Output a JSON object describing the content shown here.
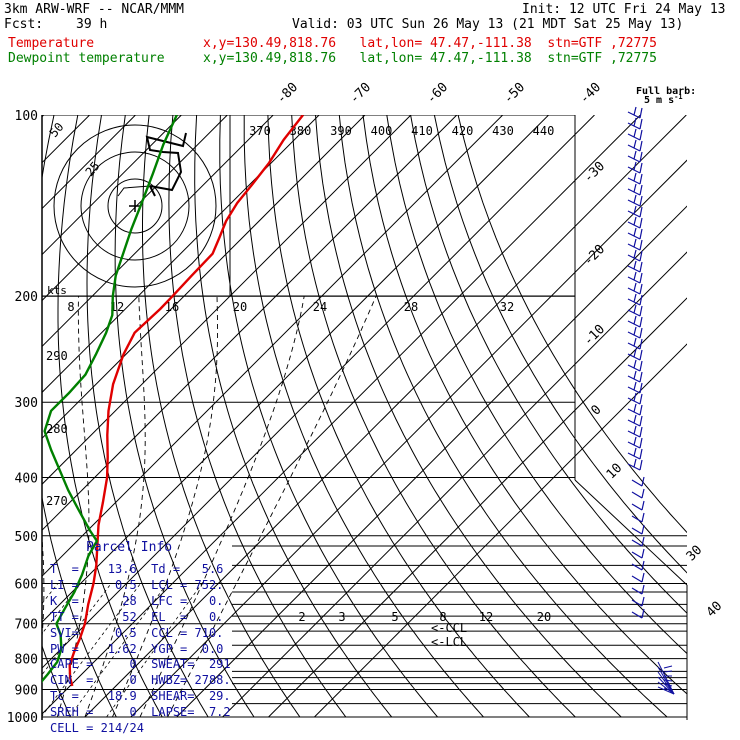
{
  "header": {
    "model": "3km ARW-WRF -- NCAR/MMM",
    "init": "Init: 12 UTC Fri 24 May 13",
    "fcst_label": "Fcst:",
    "fcst_value": "39 h",
    "valid": "Valid: 03 UTC Sun 26 May 13 (21 MDT Sat 25 May 13)",
    "temp_label": "Temperature",
    "temp_info": "x,y=130.49,818.76   lat,lon= 47.47,-111.38  stn=GTF ,72775",
    "dew_label": "Dewpoint temperature",
    "dew_info": "x,y=130.49,818.76   lat,lon= 47.47,-111.38  stn=GTF ,72775",
    "barb_legend_1": "Full barb:",
    "barb_legend_2": "5 m s",
    "barb_legend_exp": "-1"
  },
  "colors": {
    "temperature": "#e00000",
    "dewpoint": "#008000",
    "parcel_text": "#1010a0",
    "barbs": "#1010a0",
    "grid": "#000000"
  },
  "parcel_info": {
    "title": "Parcel Info",
    "rows": [
      "T  =    13.6  Td =   5.6",
      "LI =     0.5  LCL = 752.",
      "K  =      28  LFC =   0.",
      "TT =      52  EL  =   0.",
      "SVI=     0.5  CCL = 710.",
      "PW =    1.62  YGP =  0.0",
      "CAPE =     0  SWEAT=  291",
      "CIN  =     0  HWBZ= 2788.",
      "Tc =    18.9  SHEAR=  29.",
      "SREH =     0  LAPSE=  7.2",
      "CELL = 214/24"
    ]
  },
  "hodograph": {
    "units_label": "kts",
    "ring_labels": [
      "25",
      "50"
    ]
  },
  "lcl_labels": [
    "<-CCL",
    "<-LCL"
  ],
  "chart_data": {
    "type": "line",
    "title": "",
    "ylabel": "",
    "xlabel": "",
    "y_scale": "log-pressure",
    "pressure_ticks": [
      100,
      200,
      300,
      400,
      500,
      600,
      700,
      800,
      900,
      1000
    ],
    "isotherm_labels": [
      -80,
      -70,
      -60,
      -50,
      -40,
      -30,
      -20,
      -10,
      0,
      10,
      30,
      40
    ],
    "theta_e_labels": [
      370,
      380,
      390,
      400,
      410,
      420,
      430,
      440
    ],
    "upper_temp_labels": [
      8,
      12,
      16,
      20,
      24,
      28,
      32
    ],
    "mixing_ratio_labels": [
      2,
      3,
      5,
      8,
      12,
      20
    ],
    "theta_labels_left": [
      290,
      280,
      270
    ],
    "series": [
      {
        "name": "Temperature",
        "points": [
          [
            888,
            10.5
          ],
          [
            860,
            8.2
          ],
          [
            820,
            5.4
          ],
          [
            780,
            3.5
          ],
          [
            740,
            1.8
          ],
          [
            700,
            -0.3
          ],
          [
            650,
            -3.8
          ],
          [
            600,
            -7.2
          ],
          [
            560,
            -10.5
          ],
          [
            520,
            -14.5
          ],
          [
            480,
            -18.8
          ],
          [
            440,
            -22.8
          ],
          [
            400,
            -27.3
          ],
          [
            370,
            -31.6
          ],
          [
            340,
            -36.5
          ],
          [
            310,
            -41.5
          ],
          [
            280,
            -46.3
          ],
          [
            250,
            -50.5
          ],
          [
            230,
            -52.8
          ],
          [
            210,
            -52.4
          ],
          [
            200,
            -52.5
          ],
          [
            185,
            -52.8
          ],
          [
            170,
            -53
          ],
          [
            160,
            -55
          ],
          [
            150,
            -57.2
          ],
          [
            140,
            -58.7
          ],
          [
            130,
            -59.5
          ],
          [
            120,
            -60.5
          ],
          [
            110,
            -62.3
          ],
          [
            100,
            -63.5
          ]
        ]
      },
      {
        "name": "Dewpoint temperature",
        "points": [
          [
            888,
            3
          ],
          [
            850,
            2.6
          ],
          [
            810,
            2
          ],
          [
            770,
            0
          ],
          [
            730,
            -3.2
          ],
          [
            700,
            -6.5
          ],
          [
            660,
            -8
          ],
          [
            620,
            -9.5
          ],
          [
            580,
            -11.6
          ],
          [
            540,
            -14.3
          ],
          [
            510,
            -15.7
          ],
          [
            490,
            -19.5
          ],
          [
            450,
            -27
          ],
          [
            420,
            -33
          ],
          [
            390,
            -39
          ],
          [
            360,
            -45.5
          ],
          [
            335,
            -51
          ],
          [
            310,
            -54
          ],
          [
            290,
            -54
          ],
          [
            270,
            -54.4
          ],
          [
            250,
            -56.5
          ],
          [
            230,
            -59
          ],
          [
            215,
            -61.5
          ],
          [
            200,
            -65.5
          ],
          [
            185,
            -69.3
          ],
          [
            170,
            -72.5
          ],
          [
            155,
            -76
          ],
          [
            140,
            -79.5
          ],
          [
            125,
            -83.5
          ],
          [
            112,
            -87.5
          ],
          [
            100,
            -91
          ]
        ]
      }
    ]
  }
}
